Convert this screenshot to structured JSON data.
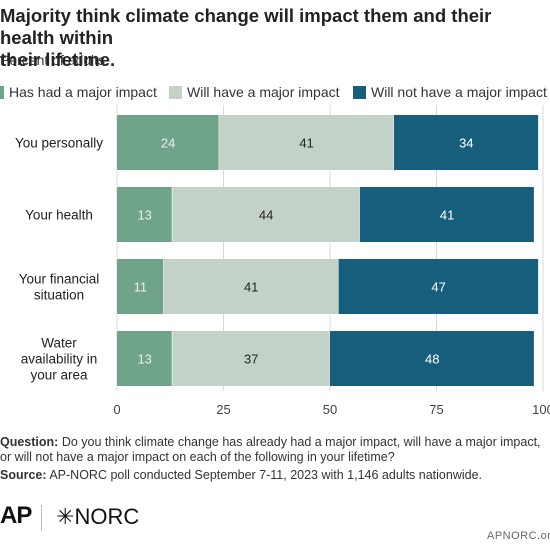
{
  "chart_data": {
    "type": "bar",
    "orientation": "horizontal",
    "stacked": true,
    "title": "Majority think climate change will impact them and their health within\ntheir lifetime.",
    "subtitle": "Percent of adults",
    "categories": [
      "You personally",
      "Your health",
      "Your financial situation",
      "Water availability in your area"
    ],
    "series": [
      {
        "name": "Has had a major impact",
        "color": "#6fa48a",
        "label_color": "#e9f2ed",
        "values": [
          24,
          13,
          11,
          13
        ]
      },
      {
        "name": "Will have a major impact",
        "color": "#c3d2c6",
        "label_color": "#222222",
        "values": [
          41,
          44,
          41,
          37
        ]
      },
      {
        "name": "Will not have a major impact",
        "color": "#175e7c",
        "label_color": "#ffffff",
        "values": [
          34,
          41,
          47,
          48
        ]
      }
    ],
    "xlim": [
      0,
      100
    ],
    "x_ticks": [
      "0",
      "25",
      "50",
      "75",
      "100"
    ],
    "grid": true,
    "legend": "top"
  },
  "footer": {
    "question_label": "Question:",
    "question_text": "Do you think climate change has already had a major impact, will have a major impact, or will not have a major impact on each of the following in your lifetime?",
    "source_label": "Source:",
    "source_text": "AP-NORC poll conducted September 7-11, 2023 with 1,146 adults nationwide.",
    "logo_ap": "AP",
    "logo_norc": "NORC",
    "site": "APNORC.org"
  }
}
